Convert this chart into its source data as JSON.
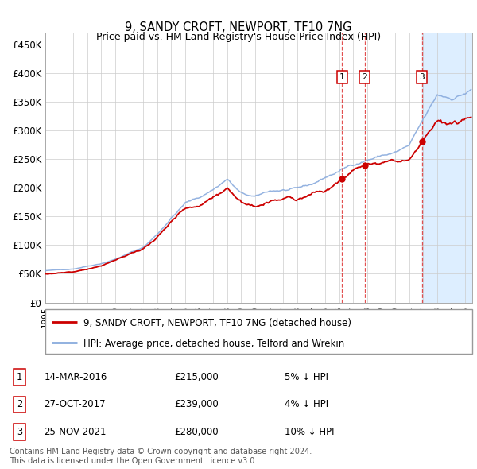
{
  "title": "9, SANDY CROFT, NEWPORT, TF10 7NG",
  "subtitle": "Price paid vs. HM Land Registry's House Price Index (HPI)",
  "yticks": [
    0,
    50000,
    100000,
    150000,
    200000,
    250000,
    300000,
    350000,
    400000,
    450000
  ],
  "ytick_labels": [
    "£0",
    "£50K",
    "£100K",
    "£150K",
    "£200K",
    "£250K",
    "£300K",
    "£350K",
    "£400K",
    "£450K"
  ],
  "xlim_start": 1995.0,
  "xlim_end": 2025.5,
  "ylim": [
    0,
    470000
  ],
  "background_color": "#f2f2f2",
  "plot_bg_color": "#ffffff",
  "grid_color": "#cccccc",
  "red_line_color": "#cc0000",
  "blue_line_color": "#88aadd",
  "transaction_line_color": "#dd3333",
  "shade_color": "#ddeeff",
  "transactions": [
    {
      "label": "1",
      "date_str": "14-MAR-2016",
      "x": 2016.2,
      "price": 215000,
      "price_str": "£215,000",
      "pct": "5%",
      "direction": "↓"
    },
    {
      "label": "2",
      "date_str": "27-OCT-2017",
      "x": 2017.82,
      "price": 239000,
      "price_str": "£239,000",
      "pct": "4%",
      "direction": "↓"
    },
    {
      "label": "3",
      "date_str": "25-NOV-2021",
      "x": 2021.9,
      "price": 280000,
      "price_str": "£280,000",
      "pct": "10%",
      "direction": "↓"
    }
  ],
  "legend_line1": "9, SANDY CROFT, NEWPORT, TF10 7NG (detached house)",
  "legend_line2": "HPI: Average price, detached house, Telford and Wrekin",
  "footer1": "Contains HM Land Registry data © Crown copyright and database right 2024.",
  "footer2": "This data is licensed under the Open Government Licence v3.0.",
  "hpi_base": 68000,
  "prop_base": 65000,
  "seed": 42
}
